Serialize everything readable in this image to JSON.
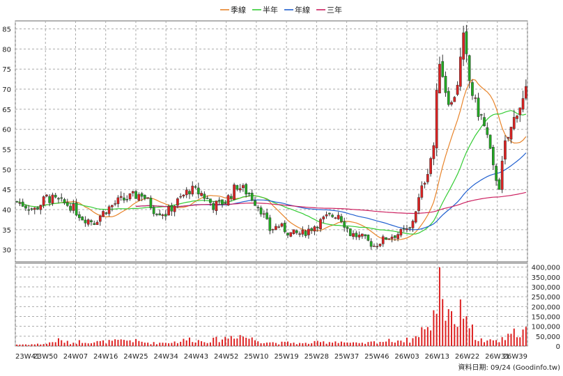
{
  "chart_data": {
    "type": "candlestick",
    "legend": [
      {
        "label": "季線",
        "color": "#e8842a"
      },
      {
        "label": "半年",
        "color": "#33cc33"
      },
      {
        "label": "年線",
        "color": "#1f5fcf"
      },
      {
        "label": "三年",
        "color": "#cc1f5f"
      }
    ],
    "price_axis": {
      "ylim": [
        27,
        87
      ],
      "ticks": [
        30,
        35,
        40,
        45,
        50,
        55,
        60,
        65,
        70,
        75,
        80,
        85
      ]
    },
    "volume_axis": {
      "ylim": [
        0,
        420000
      ],
      "ticks": [
        0,
        50000,
        100000,
        150000,
        200000,
        250000,
        300000,
        350000,
        400000
      ],
      "tick_labels": [
        "0",
        "50,000",
        "100,000",
        "150,000",
        "200,000",
        "250,000",
        "300,000",
        "350,000",
        "400,000"
      ]
    },
    "x_labels": [
      "23W41",
      "23W50",
      "24W07",
      "24W16",
      "24W25",
      "24W34",
      "24W43",
      "24W52",
      "25W10",
      "25W19",
      "25W28",
      "25W37",
      "25W46",
      "26W03",
      "26W13",
      "26W22",
      "26W31",
      "26W39"
    ],
    "footer": "資料日期: 09/24  (Goodinfo.tw)",
    "anchors": [
      [
        0,
        42,
        8000
      ],
      [
        6,
        40,
        9000
      ],
      [
        10,
        43,
        12000
      ],
      [
        14,
        42,
        30000
      ],
      [
        18,
        41,
        15000
      ],
      [
        22,
        38,
        25000
      ],
      [
        26,
        37,
        20000
      ],
      [
        30,
        40,
        22000
      ],
      [
        34,
        42,
        25000
      ],
      [
        38,
        43,
        30000
      ],
      [
        42,
        44,
        20000
      ],
      [
        46,
        40,
        15000
      ],
      [
        50,
        39,
        18000
      ],
      [
        54,
        42,
        22000
      ],
      [
        58,
        45,
        35000
      ],
      [
        62,
        44,
        25000
      ],
      [
        66,
        41,
        30000
      ],
      [
        70,
        42,
        40000
      ],
      [
        74,
        46,
        60000
      ],
      [
        78,
        44,
        40000
      ],
      [
        82,
        40,
        25000
      ],
      [
        85,
        35,
        20000
      ],
      [
        88,
        36,
        15000
      ],
      [
        92,
        34,
        18000
      ],
      [
        96,
        34,
        12000
      ],
      [
        100,
        36,
        18000
      ],
      [
        104,
        38,
        20000
      ],
      [
        108,
        39,
        25000
      ],
      [
        112,
        34,
        15000
      ],
      [
        116,
        33,
        12000
      ],
      [
        120,
        31,
        20000
      ],
      [
        124,
        33,
        25000
      ],
      [
        128,
        34,
        30000
      ],
      [
        132,
        35,
        30000
      ],
      [
        134,
        40,
        45000
      ],
      [
        136,
        45,
        90000
      ],
      [
        138,
        50,
        75000
      ],
      [
        140,
        56,
        150000
      ],
      [
        141,
        68,
        230000
      ],
      [
        142,
        78,
        410000
      ],
      [
        144,
        70,
        160000
      ],
      [
        146,
        66,
        200000
      ],
      [
        148,
        72,
        100000
      ],
      [
        150,
        82,
        230000
      ],
      [
        152,
        72,
        120000
      ],
      [
        154,
        66,
        40000
      ],
      [
        156,
        63,
        30000
      ],
      [
        158,
        58,
        20000
      ],
      [
        160,
        50,
        30000
      ],
      [
        162,
        46,
        25000
      ],
      [
        164,
        56,
        40000
      ],
      [
        166,
        60,
        50000
      ],
      [
        168,
        65,
        80000
      ],
      [
        170,
        67,
        70000
      ],
      [
        171,
        69,
        90000
      ]
    ]
  }
}
